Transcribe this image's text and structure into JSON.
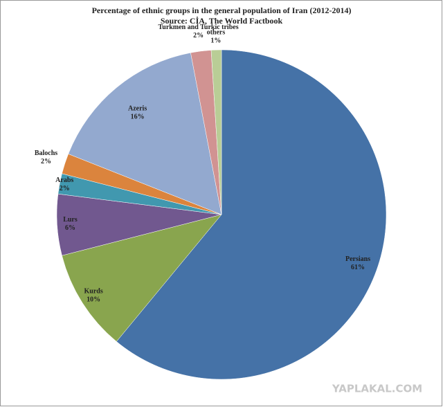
{
  "chart_data": {
    "type": "pie",
    "title": "Percentage of ethnic groups in the general population of Iran (2012-2014)",
    "subtitle": "Source: CİA, The World Factbook",
    "categories": [
      "Persians",
      "Kurds",
      "Lurs",
      "Arabs",
      "Balochs",
      "Azeris",
      "Turkmen and Turkic tribes",
      "others"
    ],
    "values": [
      61,
      10,
      6,
      2,
      2,
      16,
      2,
      1
    ],
    "value_labels": [
      "61%",
      "10%",
      "6%",
      "2%",
      "2%",
      "16%",
      "2%",
      "1%"
    ],
    "colors": [
      "#4572a7",
      "#89a54e",
      "#71588f",
      "#4198af",
      "#db843d",
      "#93a9cf",
      "#d19392",
      "#b9cd96"
    ]
  },
  "watermark": "YAPLAKAL.COM"
}
